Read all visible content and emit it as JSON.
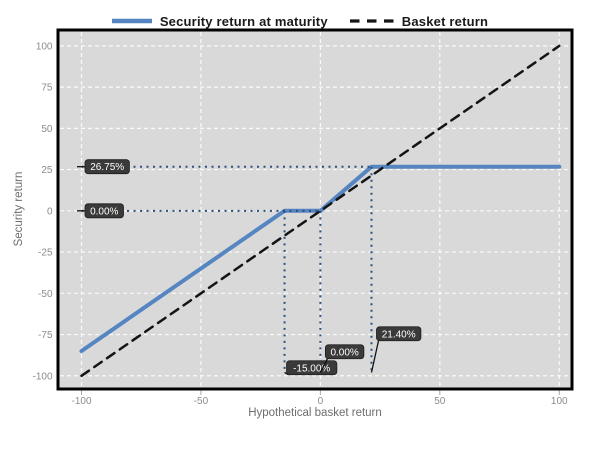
{
  "chart_data": {
    "type": "line",
    "title": "",
    "xlabel": "Hypothetical basket return",
    "ylabel": "Security return",
    "xlim": [
      -100,
      100
    ],
    "ylim": [
      -100,
      100
    ],
    "x_ticks": [
      -100,
      -50,
      0,
      50,
      100
    ],
    "y_ticks": [
      -100,
      -75,
      -50,
      -25,
      0,
      25,
      50,
      75,
      100
    ],
    "grid": true,
    "legend_position": "top",
    "series": [
      {
        "name": "Security return at maturity",
        "color": "#5586c1",
        "dash": "solid",
        "width": 4,
        "points": [
          [
            -100,
            -85
          ],
          [
            -15,
            0
          ],
          [
            0,
            0
          ],
          [
            21.4,
            26.75
          ],
          [
            100,
            26.75
          ]
        ]
      },
      {
        "name": "Basket return",
        "color": "#141414",
        "dash": "dashed",
        "width": 2.5,
        "points": [
          [
            -100,
            -100
          ],
          [
            100,
            100
          ]
        ]
      }
    ],
    "annotations": {
      "y_markers": [
        {
          "value": 26.75,
          "label": "26.75%",
          "dotted_to_x": 21.4
        },
        {
          "value": 0,
          "label": "0.00%",
          "dotted_to_x": 0
        }
      ],
      "x_markers": [
        {
          "value": -15,
          "label": "-15.00%",
          "dotted_from_y": 0,
          "label_offset": [
            2,
            -1
          ]
        },
        {
          "value": 0,
          "label": "0.00%",
          "dotted_from_y": 0,
          "label_offset": [
            5,
            -17
          ]
        },
        {
          "value": 21.4,
          "label": "21.40%",
          "dotted_from_y": 26.75,
          "label_offset": [
            5,
            -35
          ]
        }
      ]
    },
    "colors": {
      "plot_bg": "#d9d9d9",
      "grid": "#fafafa",
      "border": "#000000",
      "marker_dotted": "#2f4f7d",
      "label_bg": "#3a3a3a",
      "label_text": "#ffffff",
      "tick_text": "#8c8c8c",
      "axis_title": "#6e6e6e",
      "legend_text": "#1a1a1a",
      "leader_line": "#111111"
    }
  }
}
